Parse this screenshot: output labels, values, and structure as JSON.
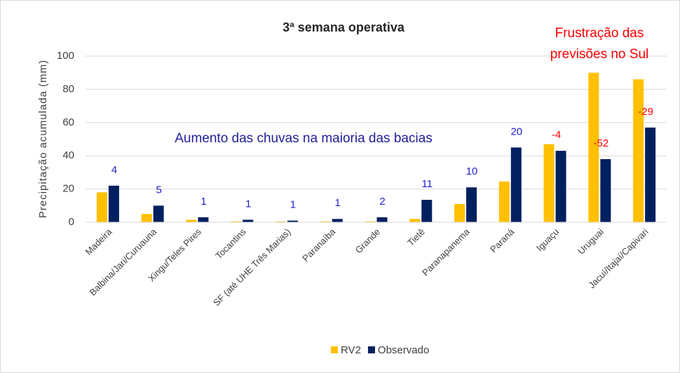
{
  "chart_data": {
    "type": "bar",
    "title": "3ª semana operativa",
    "y_label": "Precipitação acumulada (mm)",
    "categories": [
      "Madeira",
      "Balbina/Jari/Curuauna",
      "Xingu/Teles Pires",
      "Tocantins",
      "SF (até UHE Três Marias)",
      "Paranaíba",
      "Grande",
      "Tietê",
      "Paranapanema",
      "Paraná",
      "Iguaçu",
      "Uruguai",
      "Jacuí/Itajaí/Capivari"
    ],
    "series": [
      {
        "name": "RV2",
        "color": "#ffc000",
        "values": [
          18,
          5,
          1.5,
          0.5,
          0.5,
          0.5,
          0.5,
          2,
          11,
          24.5,
          47,
          90,
          86
        ]
      },
      {
        "name": "Observado",
        "color": "#002060",
        "values": [
          22,
          10,
          3,
          1.5,
          1,
          2,
          3,
          13.5,
          21,
          45,
          43,
          38,
          57
        ]
      }
    ],
    "differences": [
      4,
      5,
      1,
      1,
      1,
      1,
      2,
      11,
      10,
      20,
      -4,
      -52,
      -29
    ],
    "difference_colors": [
      "#1f1fd0",
      "#1f1fd0",
      "#1f1fd0",
      "#1f1fd0",
      "#1f1fd0",
      "#1f1fd0",
      "#1f1fd0",
      "#1f1fd0",
      "#1f1fd0",
      "#1f1fd0",
      "#ff0000",
      "#ff0000",
      "#ff0000"
    ],
    "annotations": [
      {
        "lines": [
          "Aumento das chuvas na maioria das bacias"
        ],
        "color": "#1f1f99"
      },
      {
        "lines": [
          "Frustração das",
          "previsões no Sul"
        ],
        "color": "#ff0000"
      }
    ],
    "ylim": [
      0,
      100
    ],
    "yticks": [
      0,
      20,
      40,
      60,
      80,
      100
    ],
    "grid": true,
    "legend": "bottom"
  }
}
